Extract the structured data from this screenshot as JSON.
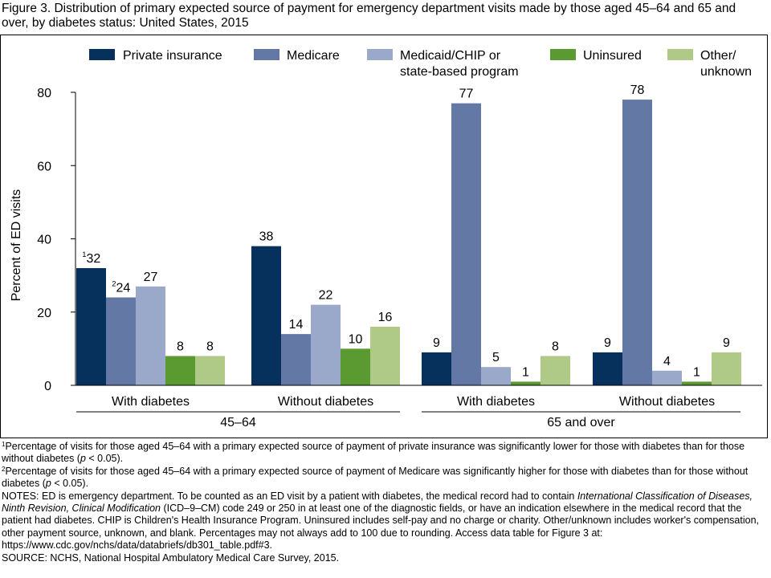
{
  "figure": {
    "title": "Figure 3. Distribution of primary expected source of payment for emergency department visits made by those aged 45–64 and 65 and over, by diabetes status: United States, 2015"
  },
  "chart_data": {
    "type": "bar",
    "ylabel": "Percent of ED visits",
    "ylim": [
      0,
      80
    ],
    "yticks": [
      0,
      20,
      40,
      60,
      80
    ],
    "grid": false,
    "legend_position": "top",
    "legend": [
      {
        "lines": [
          "Private insurance"
        ]
      },
      {
        "lines": [
          "Medicare"
        ]
      },
      {
        "lines": [
          "Medicaid/CHIP or",
          "state-based program"
        ]
      },
      {
        "lines": [
          "Uninsured"
        ]
      },
      {
        "lines": [
          "Other/",
          "unknown"
        ]
      }
    ],
    "series_colors": [
      "#06315c",
      "#6378a4",
      "#9aa9ca",
      "#5a9a30",
      "#aeca86"
    ],
    "groups": [
      {
        "label": "45–64",
        "subgroups": [
          0,
          1
        ]
      },
      {
        "label": "65 and over",
        "subgroups": [
          2,
          3
        ]
      }
    ],
    "categories": [
      "With diabetes",
      "Without diabetes",
      "With diabetes",
      "Without diabetes"
    ],
    "series": [
      {
        "name": "Private insurance",
        "values": [
          32,
          38,
          9,
          9
        ]
      },
      {
        "name": "Medicare",
        "values": [
          24,
          14,
          77,
          78
        ]
      },
      {
        "name": "Medicaid/CHIP or state-based program",
        "values": [
          27,
          22,
          5,
          4
        ]
      },
      {
        "name": "Uninsured",
        "values": [
          8,
          10,
          1,
          1
        ]
      },
      {
        "name": "Other/unknown",
        "values": [
          8,
          16,
          8,
          9
        ]
      }
    ],
    "footnote_markers": [
      {
        "category": 0,
        "series": 0,
        "marker": "1"
      },
      {
        "category": 0,
        "series": 1,
        "marker": "2"
      }
    ]
  },
  "notes": {
    "fn1": {
      "marker": "1",
      "text": "Percentage of visits for those aged 45–64 with a primary expected source of payment of private insurance was significantly lower for those with diabetes than for those without diabetes (",
      "p": "p",
      "tail": " < 0.05)."
    },
    "fn2": {
      "marker": "2",
      "text": "Percentage of visits for those aged 45–64 with a primary expected source of payment of Medicare was significantly higher for those with diabetes than for those without diabetes (",
      "p": "p",
      "tail": " < 0.05)."
    },
    "notes_a": "NOTES: ED is emergency department. To be counted as an ED visit by a patient with diabetes, the medical record had to contain ",
    "notes_icd": "International Classification of Diseases, Ninth Revision, Clinical Modification",
    "notes_b": " (ICD–9–CM) code 249 or 250 in at least one of the diagnostic fields, or have an indication elsewhere in the medical record that the patient had diabetes. CHIP is Children's Health Insurance Program. Uninsured includes self-pay and no charge or charity. Other/unknown includes worker's compensation, other payment source, unknown, and blank. Percentages may not always add to 100 due to rounding. Access data table for Figure 3 at: https://www.cdc.gov/nchs/data/databriefs/db301_table.pdf#3.",
    "source": "SOURCE: NCHS, National Hospital Ambulatory Medical Care Survey, 2015."
  }
}
